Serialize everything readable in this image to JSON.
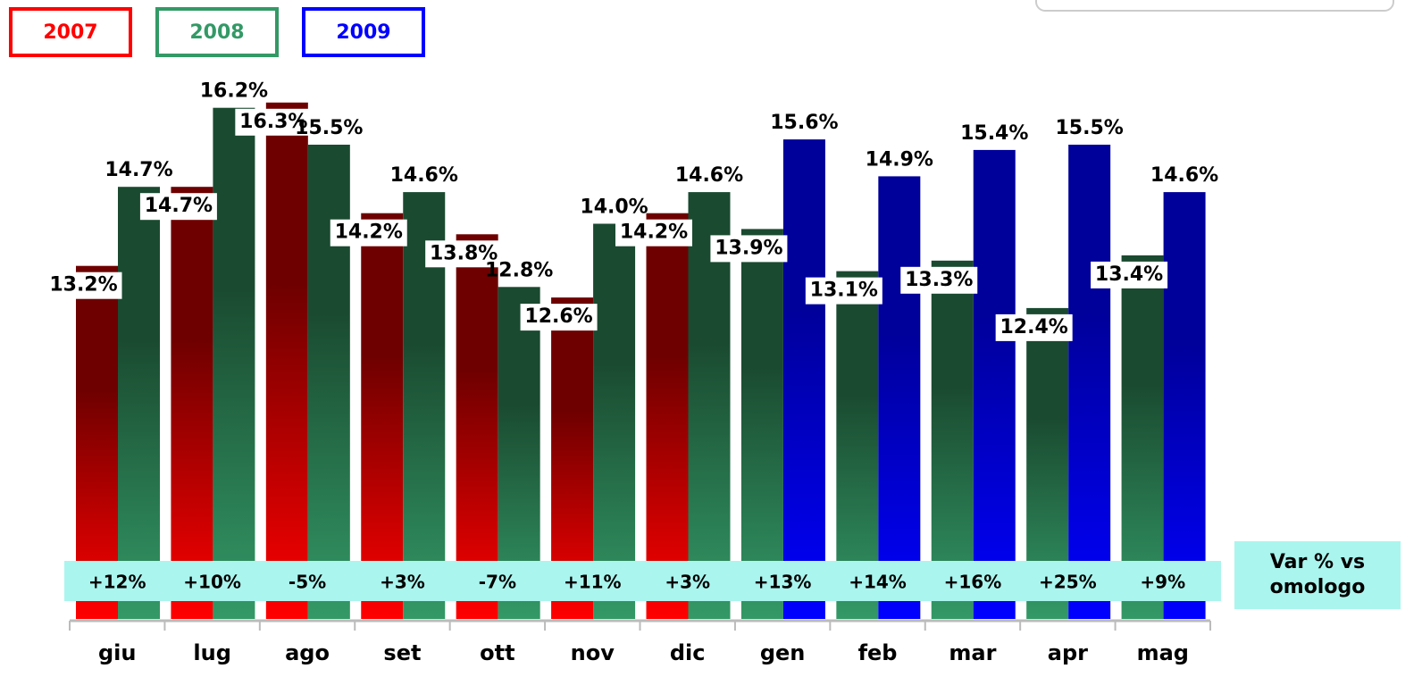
{
  "chart_data": {
    "type": "bar",
    "categories": [
      "giu",
      "lug",
      "ago",
      "set",
      "ott",
      "nov",
      "dic",
      "gen",
      "feb",
      "mar",
      "apr",
      "mag"
    ],
    "series": [
      {
        "name": "2007",
        "color": "#ff0000",
        "values": [
          13.2,
          14.7,
          16.3,
          14.2,
          13.8,
          12.6,
          14.2,
          null,
          null,
          null,
          null,
          null
        ],
        "value_labels": [
          "13.2%",
          "14.7%",
          "16.3%",
          "14.2%",
          "13.8%",
          "12.6%",
          "14.2%",
          null,
          null,
          null,
          null,
          null
        ]
      },
      {
        "name": "2008",
        "color": "#339966",
        "values": [
          14.7,
          16.2,
          15.5,
          14.6,
          12.8,
          14.0,
          14.6,
          13.9,
          13.1,
          13.3,
          12.4,
          13.4
        ],
        "value_labels": [
          "14.7%",
          "16.2%",
          "15.5%",
          "14.6%",
          "12.8%",
          "14.0%",
          "14.6%",
          "13.9%",
          "13.1%",
          "13.3%",
          "12.4%",
          "13.4%"
        ]
      },
      {
        "name": "2009",
        "color": "#0000ff",
        "values": [
          null,
          null,
          null,
          null,
          null,
          null,
          null,
          15.6,
          14.9,
          15.4,
          15.5,
          14.6
        ],
        "value_labels": [
          null,
          null,
          null,
          null,
          null,
          null,
          null,
          "15.6%",
          "14.9%",
          "15.4%",
          "15.5%",
          "14.6%"
        ]
      }
    ],
    "variation": {
      "label": "Var % vs omologo",
      "values": [
        12,
        10,
        -5,
        3,
        -7,
        11,
        3,
        13,
        14,
        16,
        25,
        9
      ],
      "value_labels": [
        "+12%",
        "+10%",
        "-5%",
        "+3%",
        "-7%",
        "+11%",
        "+3%",
        "+13%",
        "+14%",
        "+16%",
        "+25%",
        "+9%"
      ]
    },
    "ylim": [
      6.5,
      17
    ]
  }
}
